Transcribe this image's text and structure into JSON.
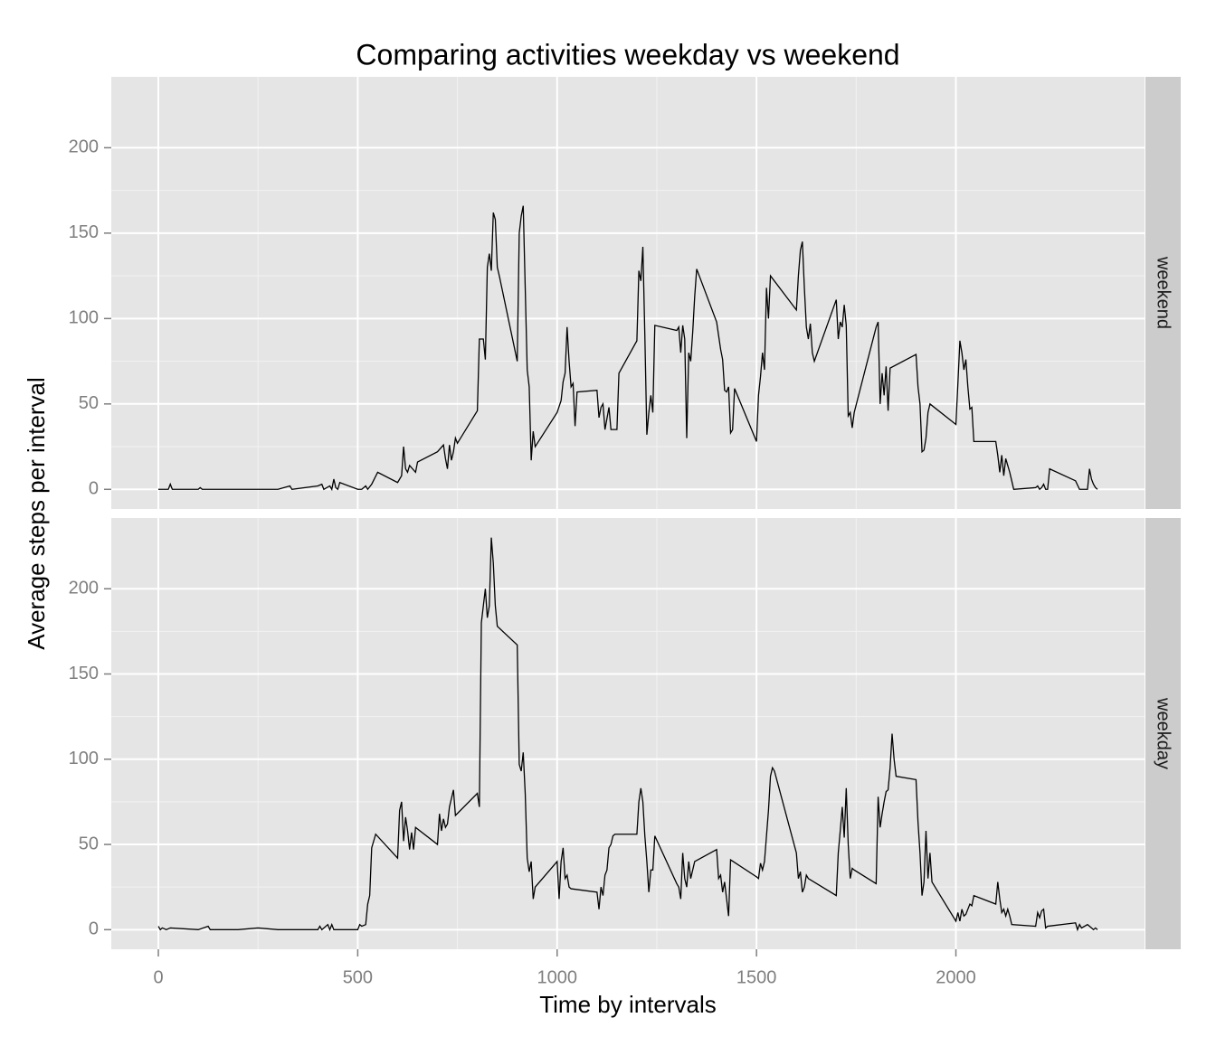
{
  "chart_data": {
    "type": "line",
    "title": "Comparing activities weekday vs weekend",
    "x_label": "Time by intervals",
    "y_label": "Average steps per interval",
    "xlim": [
      -118,
      2473
    ],
    "ylim": [
      -11.5,
      241.5
    ],
    "xticks": [
      0,
      500,
      1000,
      1500,
      2000
    ],
    "yticks": [
      0,
      50,
      100,
      150,
      200
    ],
    "grid": true,
    "series": [
      {
        "name": "weekend",
        "color": "#000000",
        "x": [
          0,
          25,
          30,
          35,
          100,
          105,
          110,
          200,
          300,
          330,
          335,
          400,
          410,
          415,
          430,
          435,
          440,
          445,
          450,
          455,
          500,
          510,
          520,
          525,
          535,
          550,
          600,
          610,
          615,
          620,
          625,
          630,
          645,
          650,
          700,
          715,
          720,
          725,
          730,
          735,
          740,
          745,
          750,
          800,
          805,
          815,
          820,
          825,
          830,
          835,
          840,
          845,
          850,
          855,
          900,
          905,
          910,
          915,
          920,
          925,
          930,
          935,
          940,
          945,
          1000,
          1010,
          1015,
          1020,
          1025,
          1030,
          1035,
          1040,
          1045,
          1050,
          1100,
          1105,
          1110,
          1115,
          1120,
          1130,
          1135,
          1145,
          1150,
          1155,
          1200,
          1205,
          1210,
          1215,
          1220,
          1225,
          1230,
          1235,
          1240,
          1245,
          1300,
          1305,
          1310,
          1315,
          1320,
          1325,
          1330,
          1335,
          1340,
          1345,
          1350,
          1400,
          1405,
          1410,
          1415,
          1420,
          1425,
          1430,
          1435,
          1440,
          1445,
          1500,
          1505,
          1510,
          1515,
          1520,
          1525,
          1530,
          1535,
          1600,
          1605,
          1610,
          1615,
          1620,
          1625,
          1630,
          1635,
          1640,
          1645,
          1700,
          1705,
          1710,
          1715,
          1720,
          1725,
          1730,
          1735,
          1740,
          1745,
          1800,
          1805,
          1810,
          1815,
          1820,
          1825,
          1830,
          1835,
          1900,
          1905,
          1910,
          1915,
          1920,
          1925,
          1930,
          1935,
          2000,
          2005,
          2010,
          2015,
          2020,
          2025,
          2030,
          2035,
          2040,
          2045,
          2100,
          2105,
          2110,
          2115,
          2120,
          2125,
          2130,
          2135,
          2140,
          2145,
          2200,
          2205,
          2210,
          2215,
          2220,
          2225,
          2230,
          2235,
          2300,
          2310,
          2330,
          2335,
          2340,
          2345,
          2350,
          2355
        ],
        "values": [
          0,
          0,
          3,
          0,
          0,
          1,
          0,
          0,
          0,
          2,
          0,
          2,
          3,
          0,
          2,
          0,
          6,
          1,
          0,
          4,
          0,
          0,
          2,
          0,
          3,
          10,
          4,
          8,
          25,
          12,
          10,
          14,
          10,
          16,
          22,
          26,
          18,
          12,
          26,
          17,
          22,
          30,
          27,
          46,
          88,
          88,
          76,
          130,
          138,
          128,
          162,
          158,
          130,
          125,
          75,
          150,
          160,
          166,
          118,
          70,
          60,
          17,
          34,
          25,
          45,
          52,
          63,
          68,
          95,
          75,
          60,
          62,
          37,
          57,
          58,
          42,
          48,
          50,
          35,
          48,
          35,
          35,
          35,
          68,
          87,
          128,
          122,
          142,
          90,
          32,
          45,
          55,
          45,
          96,
          93,
          95,
          80,
          96,
          88,
          30,
          80,
          75,
          92,
          113,
          129,
          98,
          90,
          82,
          76,
          58,
          57,
          60,
          33,
          35,
          59,
          28,
          55,
          66,
          80,
          70,
          118,
          100,
          125,
          105,
          125,
          140,
          145,
          118,
          95,
          88,
          97,
          80,
          75,
          111,
          88,
          98,
          95,
          108,
          96,
          43,
          45,
          36,
          45,
          95,
          98,
          50,
          68,
          55,
          72,
          46,
          71,
          79,
          60,
          50,
          22,
          23,
          30,
          45,
          50,
          38,
          62,
          87,
          80,
          70,
          76,
          60,
          47,
          48,
          28,
          28,
          20,
          10,
          20,
          8,
          18,
          14,
          10,
          5,
          0,
          1,
          2,
          0,
          1,
          3,
          0,
          0,
          12,
          5,
          0,
          0,
          12,
          6,
          3,
          1,
          0
        ]
      },
      {
        "name": "weekday",
        "color": "#000000",
        "x": [
          0,
          5,
          10,
          20,
          30,
          100,
          125,
          130,
          200,
          250,
          300,
          400,
          405,
          410,
          425,
          430,
          435,
          440,
          500,
          505,
          510,
          520,
          525,
          530,
          535,
          545,
          600,
          605,
          610,
          615,
          620,
          625,
          630,
          635,
          640,
          645,
          700,
          705,
          710,
          715,
          720,
          725,
          730,
          740,
          745,
          800,
          805,
          810,
          815,
          820,
          825,
          830,
          835,
          840,
          845,
          850,
          900,
          905,
          910,
          915,
          920,
          925,
          930,
          935,
          940,
          945,
          1000,
          1005,
          1010,
          1015,
          1020,
          1025,
          1030,
          1035,
          1100,
          1105,
          1110,
          1115,
          1120,
          1125,
          1130,
          1135,
          1140,
          1145,
          1200,
          1205,
          1210,
          1215,
          1220,
          1225,
          1230,
          1235,
          1240,
          1245,
          1300,
          1305,
          1310,
          1315,
          1320,
          1325,
          1330,
          1335,
          1340,
          1345,
          1400,
          1405,
          1410,
          1415,
          1420,
          1425,
          1430,
          1435,
          1500,
          1505,
          1510,
          1515,
          1520,
          1525,
          1530,
          1535,
          1540,
          1545,
          1600,
          1605,
          1610,
          1615,
          1620,
          1625,
          1630,
          1700,
          1705,
          1710,
          1715,
          1720,
          1725,
          1730,
          1735,
          1740,
          1745,
          1800,
          1805,
          1810,
          1815,
          1820,
          1825,
          1830,
          1835,
          1840,
          1845,
          1850,
          1900,
          1905,
          1910,
          1915,
          1920,
          1925,
          1930,
          1935,
          1940,
          2000,
          2005,
          2010,
          2015,
          2020,
          2025,
          2030,
          2035,
          2040,
          2045,
          2100,
          2105,
          2110,
          2115,
          2120,
          2125,
          2130,
          2135,
          2140,
          2200,
          2205,
          2210,
          2215,
          2220,
          2225,
          2230,
          2300,
          2305,
          2310,
          2315,
          2330,
          2335,
          2340,
          2345,
          2350,
          2355
        ],
        "values": [
          2,
          0,
          1,
          0,
          1,
          0,
          2,
          0,
          0,
          1,
          0,
          0,
          2,
          0,
          3,
          0,
          3,
          0,
          0,
          3,
          2,
          3,
          15,
          20,
          48,
          56,
          42,
          70,
          75,
          52,
          66,
          58,
          47,
          57,
          47,
          60,
          50,
          68,
          58,
          65,
          60,
          62,
          72,
          82,
          67,
          80,
          72,
          180,
          190,
          200,
          183,
          190,
          230,
          215,
          190,
          178,
          167,
          97,
          93,
          104,
          80,
          42,
          34,
          40,
          18,
          25,
          40,
          18,
          40,
          48,
          30,
          32,
          25,
          24,
          22,
          12,
          25,
          20,
          32,
          35,
          48,
          50,
          55,
          56,
          56,
          75,
          83,
          75,
          55,
          40,
          22,
          35,
          35,
          55,
          27,
          25,
          18,
          45,
          30,
          25,
          40,
          30,
          35,
          40,
          47,
          30,
          32,
          22,
          28,
          18,
          8,
          41,
          31,
          30,
          39,
          35,
          40,
          55,
          70,
          90,
          95,
          93,
          45,
          30,
          34,
          22,
          25,
          32,
          30,
          20,
          45,
          58,
          72,
          54,
          83,
          50,
          30,
          36,
          35,
          27,
          78,
          60,
          68,
          75,
          81,
          82,
          95,
          115,
          100,
          90,
          88,
          63,
          45,
          20,
          28,
          58,
          30,
          45,
          28,
          5,
          10,
          5,
          12,
          8,
          9,
          12,
          15,
          14,
          20,
          15,
          28,
          18,
          10,
          12,
          8,
          12,
          8,
          3,
          2,
          10,
          7,
          11,
          12,
          1,
          2,
          4,
          0,
          3,
          1,
          3,
          2,
          1,
          0,
          1,
          0
        ]
      }
    ]
  }
}
